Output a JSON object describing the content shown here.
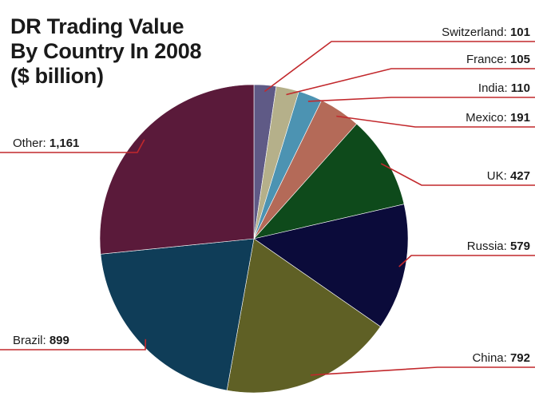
{
  "chart_data": {
    "type": "pie",
    "title": [
      "DR Trading Value",
      "By Country In 2008",
      "($ billion)"
    ],
    "slices": [
      {
        "label": "Switzerland",
        "value": 101,
        "display": "101",
        "color": "#5f5a86"
      },
      {
        "label": "France",
        "value": 105,
        "display": "105",
        "color": "#b5b08a"
      },
      {
        "label": "India",
        "value": 110,
        "display": "110",
        "color": "#4c93b2"
      },
      {
        "label": "Mexico",
        "value": 191,
        "display": "191",
        "color": "#b46a58"
      },
      {
        "label": "UK",
        "value": 427,
        "display": "427",
        "color": "#0e4a1b"
      },
      {
        "label": "Russia",
        "value": 579,
        "display": "579",
        "color": "#0b0b3a"
      },
      {
        "label": "China",
        "value": 792,
        "display": "792",
        "color": "#5f6025"
      },
      {
        "label": "Brazil",
        "value": 899,
        "display": "899",
        "color": "#0f3d58"
      },
      {
        "label": "Other",
        "value": 1161,
        "display": "1,161",
        "color": "#5a1a3a"
      }
    ],
    "leader_line_color": "#c2282c"
  }
}
